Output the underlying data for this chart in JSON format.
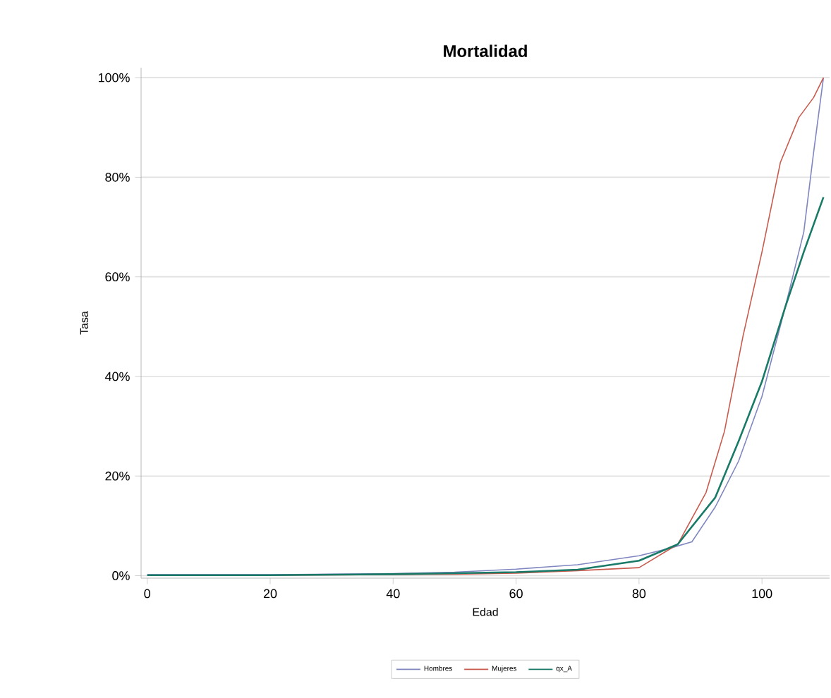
{
  "chart_data": {
    "type": "line",
    "title": "Mortalidad",
    "xlabel": "Edad",
    "ylabel": "Tasa",
    "xlim": [
      -1,
      111
    ],
    "xticks": [
      0,
      20,
      40,
      60,
      80,
      100
    ],
    "ylim": [
      -0.5,
      102
    ],
    "yticks": [
      {
        "value": 0,
        "label": "0%"
      },
      {
        "value": 20,
        "label": "20%"
      },
      {
        "value": 40,
        "label": "40%"
      },
      {
        "value": 60,
        "label": "60%"
      },
      {
        "value": 80,
        "label": "80%"
      },
      {
        "value": 100,
        "label": "100%"
      }
    ],
    "grid": "y",
    "legend": "bottom",
    "marker": "none",
    "line_style": "solid",
    "series": [
      {
        "name": "Hombres",
        "color": "#7f86c0",
        "x": [
          0,
          20,
          40,
          50,
          60,
          70,
          80,
          85,
          88.6,
          92.4,
          96.2,
          100,
          103.8,
          106.8,
          108.4,
          110
        ],
        "values": [
          0.2,
          0.2,
          0.4,
          0.7,
          1.3,
          2.2,
          4,
          5.5,
          6.8,
          13.8,
          23,
          36,
          54,
          69,
          85,
          100
        ]
      },
      {
        "name": "Mujeres",
        "color": "#c85a4e",
        "x": [
          0,
          20,
          40,
          50,
          60,
          70,
          80,
          86.3,
          90.9,
          93.9,
          96.9,
          100,
          103,
          106,
          108.4,
          110
        ],
        "values": [
          0.1,
          0.1,
          0.2,
          0.3,
          0.5,
          1,
          1.6,
          6.3,
          16.7,
          29,
          48,
          65,
          83,
          92,
          96,
          100
        ]
      },
      {
        "name": "qx_A",
        "color": "#1a7a68",
        "x": [
          0,
          20,
          40,
          50,
          60,
          70,
          80,
          86.3,
          92.4,
          96.2,
          100,
          103.8,
          106.8,
          110
        ],
        "values": [
          0.1,
          0.1,
          0.3,
          0.5,
          0.7,
          1.2,
          3,
          6.3,
          15.7,
          27,
          39,
          54,
          65,
          76
        ]
      }
    ]
  }
}
